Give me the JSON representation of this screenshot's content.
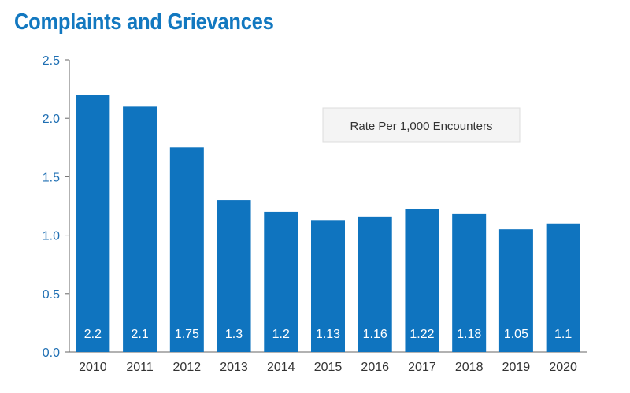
{
  "chart_data": {
    "type": "bar",
    "title": "Complaints and Grievances",
    "categories": [
      "2010",
      "2011",
      "2012",
      "2013",
      "2014",
      "2015",
      "2016",
      "2017",
      "2018",
      "2019",
      "2020"
    ],
    "series": [
      {
        "name": "Rate Per 1,000 Encounters",
        "values": [
          2.2,
          2.1,
          1.75,
          1.3,
          1.2,
          1.13,
          1.16,
          1.22,
          1.18,
          1.05,
          1.1
        ]
      }
    ],
    "data_labels": [
      "2.2",
      "2.1",
      "1.75",
      "1.3",
      "1.2",
      "1.13",
      "1.16",
      "1.22",
      "1.18",
      "1.05",
      "1.1"
    ],
    "y_ticks": [
      "0.0",
      "0.5",
      "1.0",
      "1.5",
      "2.0",
      "2.5"
    ],
    "ylim": [
      0,
      2.5
    ],
    "xlabel": "",
    "ylabel": "",
    "grid": false,
    "legend_position": "top-right",
    "bar_color": "#0f74bf",
    "axis_tick_color": "#1f6fb3"
  }
}
